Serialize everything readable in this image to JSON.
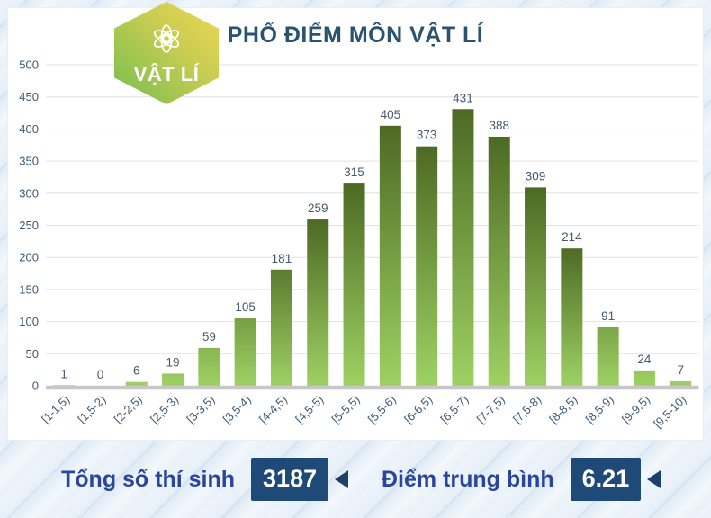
{
  "badge": {
    "label": "VẬT LÍ",
    "icon": "atom-icon"
  },
  "header": {
    "title": "PHỔ ĐIỂM MÔN VẬT LÍ"
  },
  "chart_data": {
    "type": "bar",
    "title": "PHỔ ĐIỂM MÔN VẬT LÍ",
    "categories": [
      "[1-1,5)",
      "[1,5-2)",
      "[2-2,5)",
      "[2,5-3)",
      "[3-3,5)",
      "[3,5-4)",
      "[4-4,5)",
      "[4,5-5)",
      "[5-5,5)",
      "[5,5-6)",
      "[6-6,5)",
      "[6,5-7)",
      "[7-7,5)",
      "[7,5-8)",
      "[8-8,5)",
      "[8,5-9)",
      "[9-9,5)",
      "[9,5-10)"
    ],
    "values": [
      1,
      0,
      6,
      19,
      59,
      105,
      181,
      259,
      315,
      405,
      373,
      431,
      388,
      309,
      214,
      91,
      24,
      7
    ],
    "xlabel": "",
    "ylabel": "",
    "ylim": [
      0,
      500
    ],
    "ytick_step": 50,
    "grid": true,
    "legend": "none",
    "value_labels": true,
    "bar_color_top": "#4d6a24",
    "bar_color_bottom": "#9ed163"
  },
  "footer": {
    "total_label": "Tổng số thí sinh",
    "total_value": "3187",
    "average_label": "Điểm trung bình",
    "average_value": "6.21"
  },
  "colors": {
    "title_text": "#29536f",
    "axis_text": "#3c5a77",
    "value_label_text": "#47596b",
    "footer_label_text": "#2b459c",
    "value_box_bg": "#1f4a78",
    "gridline": "#e2e2e2",
    "baseline": "#c7c7c7",
    "badge_gradient_top": "#eed754",
    "badge_gradient_bottom": "#83c051"
  }
}
